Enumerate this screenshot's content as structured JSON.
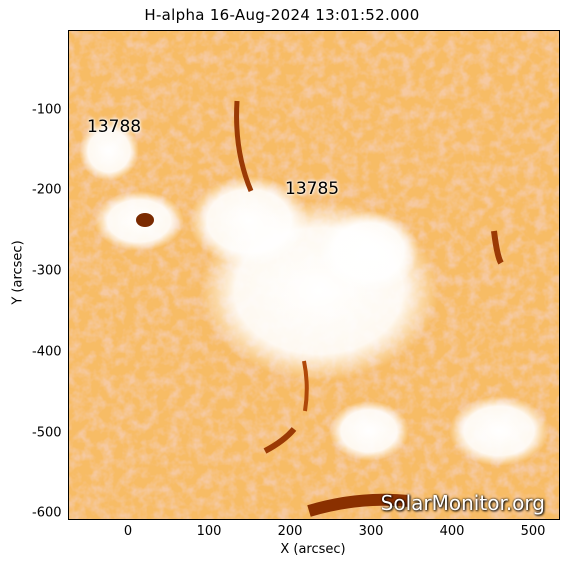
{
  "title": "H-alpha 16-Aug-2024 13:01:52.000",
  "x_axis": {
    "label": "X (arcsec)",
    "ticks": [
      "0",
      "100",
      "200",
      "300",
      "400",
      "500"
    ],
    "tick_values": [
      0,
      100,
      200,
      300,
      400,
      500
    ],
    "range": [
      -75,
      525
    ]
  },
  "y_axis": {
    "label": "Y (arcsec)",
    "ticks": [
      "-100",
      "-200",
      "-300",
      "-400",
      "-500",
      "-600"
    ],
    "tick_values": [
      -100,
      -200,
      -300,
      -400,
      -500,
      -600
    ],
    "range": [
      -605,
      10
    ]
  },
  "active_regions": [
    {
      "label": "13788",
      "x": -40,
      "y": -120
    },
    {
      "label": "13785",
      "x": 175,
      "y": -195
    }
  ],
  "watermark": "SolarMonitor.org",
  "colors": {
    "chromosphere": "#e87a1c",
    "plage": "#ffffff",
    "dark": "#7a2a00"
  }
}
